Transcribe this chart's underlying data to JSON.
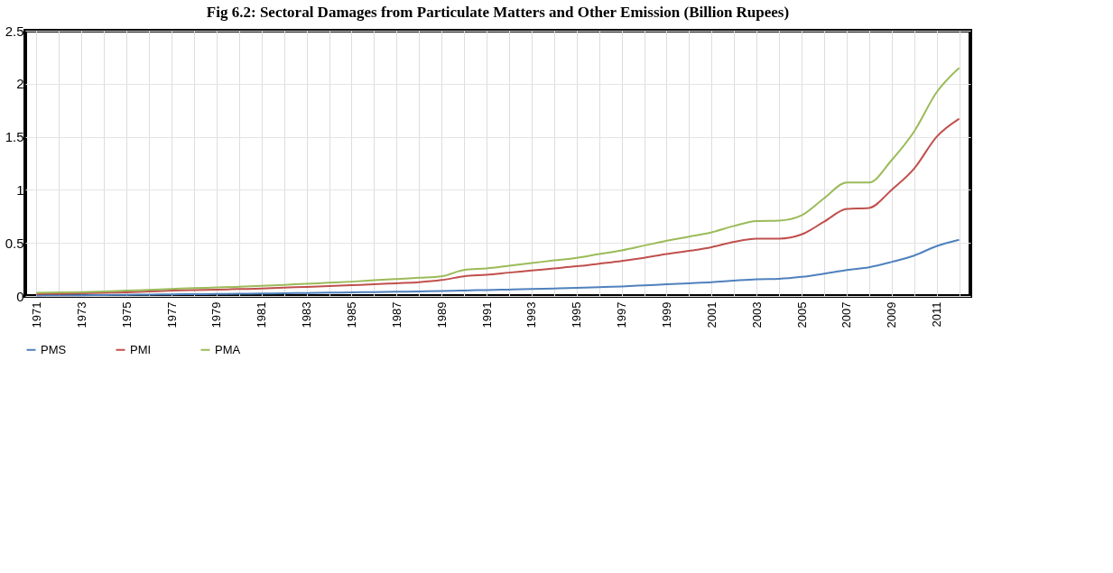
{
  "chart_data": {
    "type": "line",
    "title": "Fig 6.2: Sectoral Damages from Particulate Matters and Other Emission  (Billion  Rupees)",
    "categories": [
      "1971",
      null,
      "1973",
      null,
      "1975",
      null,
      "1977",
      null,
      "1979",
      null,
      "1981",
      null,
      "1983",
      null,
      "1985",
      null,
      "1987",
      null,
      "1989",
      null,
      "1991",
      null,
      "1993",
      null,
      "1995",
      null,
      "1997",
      null,
      "1999",
      null,
      "2001",
      null,
      "2003",
      null,
      "2005",
      null,
      "2007",
      null,
      "2009",
      null,
      "2011",
      null
    ],
    "series": [
      {
        "name": "PMS",
        "color": "#4f81bd",
        "values": [
          0.005,
          0.006,
          0.007,
          0.009,
          0.011,
          0.013,
          0.015,
          0.017,
          0.019,
          0.021,
          0.023,
          0.025,
          0.028,
          0.031,
          0.034,
          0.037,
          0.04,
          0.043,
          0.047,
          0.052,
          0.056,
          0.06,
          0.065,
          0.07,
          0.076,
          0.083,
          0.09,
          0.1,
          0.11,
          0.12,
          0.13,
          0.145,
          0.158,
          0.162,
          0.18,
          0.21,
          0.245,
          0.27,
          0.32,
          0.38,
          0.47,
          0.53
        ]
      },
      {
        "name": "PMI",
        "color": "#c0504d",
        "values": [
          0.02,
          0.022,
          0.025,
          0.03,
          0.035,
          0.042,
          0.05,
          0.055,
          0.06,
          0.065,
          0.07,
          0.078,
          0.086,
          0.094,
          0.102,
          0.11,
          0.12,
          0.13,
          0.15,
          0.185,
          0.2,
          0.22,
          0.24,
          0.26,
          0.28,
          0.305,
          0.33,
          0.36,
          0.395,
          0.425,
          0.46,
          0.51,
          0.54,
          0.54,
          0.58,
          0.7,
          0.82,
          0.83,
          1.0,
          1.2,
          1.5,
          1.67
        ]
      },
      {
        "name": "PMA",
        "color": "#9bbb59",
        "values": [
          0.03,
          0.033,
          0.036,
          0.042,
          0.05,
          0.058,
          0.066,
          0.074,
          0.08,
          0.087,
          0.095,
          0.105,
          0.115,
          0.125,
          0.135,
          0.148,
          0.16,
          0.172,
          0.185,
          0.245,
          0.26,
          0.285,
          0.31,
          0.335,
          0.36,
          0.395,
          0.43,
          0.475,
          0.52,
          0.56,
          0.6,
          0.66,
          0.705,
          0.71,
          0.76,
          0.92,
          1.07,
          1.07,
          1.28,
          1.55,
          1.92,
          2.15
        ]
      }
    ],
    "ylim": [
      0,
      2.5
    ],
    "yticks": [
      0,
      0.5,
      1,
      1.5,
      2,
      2.5
    ],
    "grid": true,
    "legend": "bottom",
    "marker": "none",
    "line_style": "solid"
  }
}
